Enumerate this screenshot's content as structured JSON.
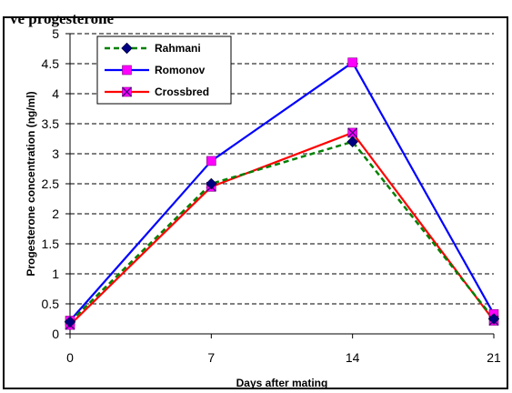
{
  "figure": {
    "cut_title": "ve progesterone"
  },
  "chart_data": {
    "type": "line",
    "title": "",
    "xlabel": "Days after mating",
    "ylabel": "Progesterone concentration (ng/ml)",
    "x": [
      0,
      7,
      14,
      21
    ],
    "x_tick_labels": [
      "0",
      "7",
      "14",
      "21"
    ],
    "ylim": [
      0,
      5
    ],
    "y_ticks": [
      0,
      0.5,
      1,
      1.5,
      2,
      2.5,
      3,
      3.5,
      4,
      4.5,
      5
    ],
    "y_tick_labels": [
      "0",
      "0.5",
      "1",
      "1.5",
      "2",
      "2.5",
      "3",
      "3.5",
      "4",
      "4.5",
      "5"
    ],
    "grid": "horizontal dashed",
    "legend_position": "top-left",
    "series": [
      {
        "name": "Rahmani",
        "values": [
          0.2,
          2.5,
          3.2,
          0.25
        ],
        "line_color": "#008000",
        "line_style": "dashed",
        "marker": "diamond",
        "marker_color": "#000080"
      },
      {
        "name": "Romonov",
        "values": [
          0.22,
          2.88,
          4.52,
          0.33
        ],
        "line_color": "#0000ff",
        "line_style": "solid",
        "marker": "square",
        "marker_color": "#ff00ff"
      },
      {
        "name": "Crossbred",
        "values": [
          0.15,
          2.45,
          3.35,
          0.22
        ],
        "line_color": "#ff0000",
        "line_style": "solid",
        "marker": "x-square",
        "marker_color": "#ff00ff"
      }
    ]
  }
}
